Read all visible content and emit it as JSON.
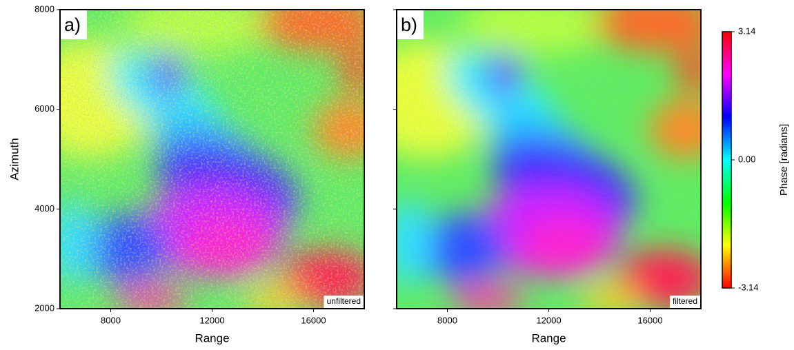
{
  "chart_data": [
    {
      "type": "image",
      "panel_label": "a)",
      "annotation": "unfiltered",
      "xlabel": "Range",
      "ylabel": "Azimuth",
      "xlim": [
        6000,
        18000
      ],
      "xticks": [
        8000,
        12000,
        16000
      ],
      "ylim": [
        2000,
        8000
      ],
      "yticks": [
        2000,
        4000,
        6000,
        8000
      ]
    },
    {
      "type": "image",
      "panel_label": "b)",
      "annotation": "filtered",
      "xlabel": "Range",
      "xlim": [
        6000,
        18000
      ],
      "xticks": [
        8000,
        12000,
        16000
      ],
      "ylim": [
        2000,
        8000
      ]
    }
  ],
  "colorbar": {
    "label": "Phase [radians]",
    "lim": [
      -3.14,
      3.14
    ],
    "ticks": [
      -3.14,
      {
        "value": 0,
        "label": "0.00"
      },
      3.14
    ],
    "colors": [
      "#ff0000",
      "#ffff00",
      "#00ff00",
      "#00ffff",
      "#0000ff",
      "#ff00ff",
      "#ff0000"
    ]
  }
}
